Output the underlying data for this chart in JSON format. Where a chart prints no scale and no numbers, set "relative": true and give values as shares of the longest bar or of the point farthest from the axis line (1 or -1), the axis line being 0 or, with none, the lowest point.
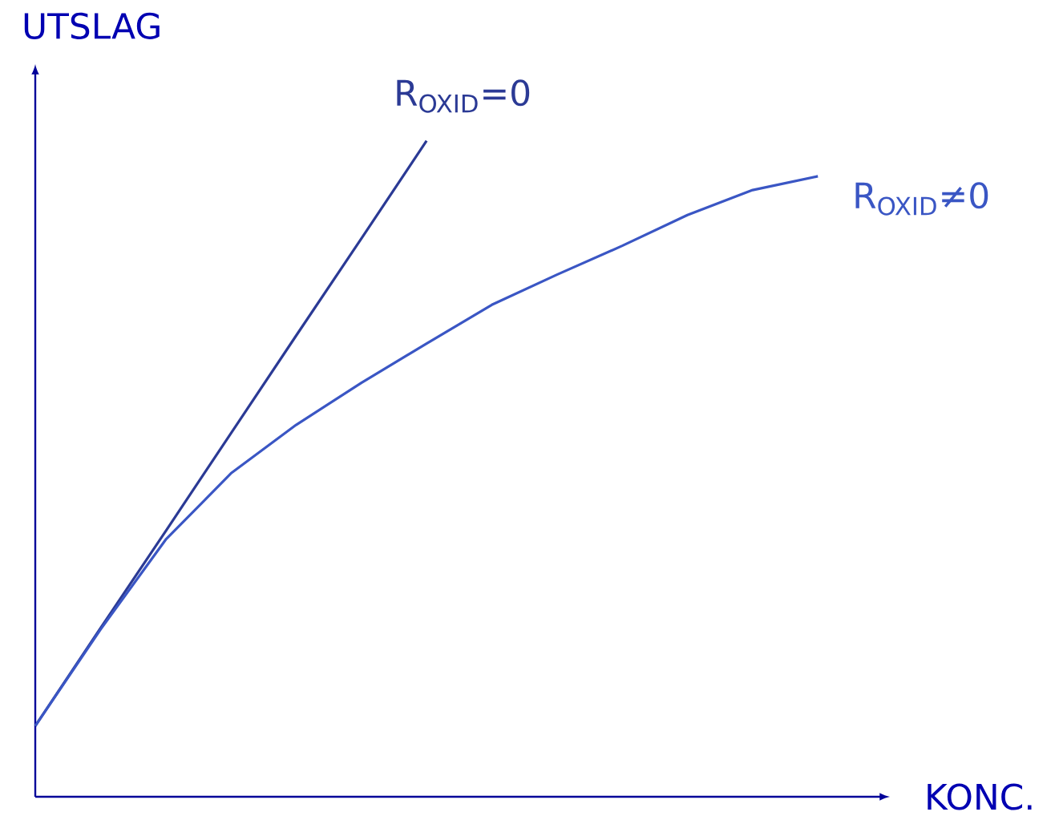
{
  "chart_data": {
    "type": "line",
    "relative": true,
    "tick_labels": false,
    "xlabel": "KONC.",
    "ylabel": "UTSLAG",
    "categories": [
      null,
      null,
      null,
      null,
      null,
      null,
      null,
      null,
      null,
      null,
      null,
      null,
      null
    ],
    "series": [
      {
        "name": "R$_{OXID}$=0",
        "color": "#2b3a95",
        "values": [
          0.108,
          0.257,
          0.405,
          0.554,
          0.703,
          0.851,
          1.0,
          null,
          null,
          null,
          null,
          null,
          null
        ]
      },
      {
        "name": "R$_{OXID}$≠0",
        "color": "#3a56c4",
        "values": [
          0.108,
          0.255,
          0.392,
          0.493,
          0.567,
          0.631,
          0.691,
          0.75,
          0.796,
          0.84,
          0.887,
          0.925,
          0.946
        ]
      }
    ]
  }
}
